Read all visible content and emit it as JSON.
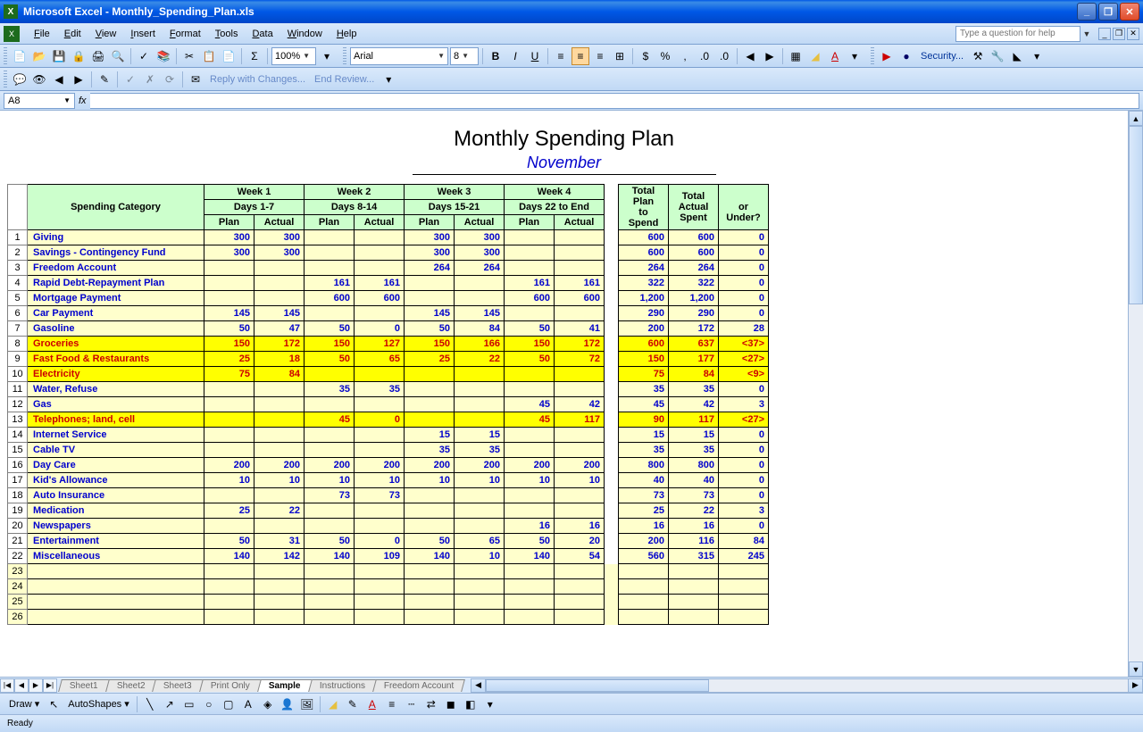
{
  "titlebar": {
    "app": "Microsoft Excel",
    "file": "Monthly_Spending_Plan.xls"
  },
  "menu": [
    "File",
    "Edit",
    "View",
    "Insert",
    "Format",
    "Tools",
    "Data",
    "Window",
    "Help"
  ],
  "helpPlaceholder": "Type a question for help",
  "toolbar1": {
    "zoom": "100%"
  },
  "toolbar2": {
    "font": "Arial",
    "size": "8"
  },
  "toolbar3": {
    "reply": "Reply with Changes...",
    "end": "End Review..."
  },
  "security": "Security...",
  "namebox": "A8",
  "doc": {
    "title": "Monthly Spending Plan",
    "month": "November"
  },
  "headers": {
    "category": "Spending Category",
    "weeks": [
      {
        "top": "Week 1",
        "sub": "Days 1-7"
      },
      {
        "top": "Week 2",
        "sub": "Days 8-14"
      },
      {
        "top": "Week 3",
        "sub": "Days 15-21"
      },
      {
        "top": "Week 4",
        "sub": "Days 22 to End"
      }
    ],
    "plan": "Plan",
    "actual": "Actual",
    "totals": [
      "Total Plan to Spend",
      "Total Actual Spent",
      "<Over> or Under?"
    ]
  },
  "rows": [
    {
      "n": 1,
      "cat": "Giving",
      "w": [
        [
          "300",
          "300"
        ],
        [
          "",
          ""
        ],
        [
          "300",
          "300"
        ],
        [
          "",
          ""
        ]
      ],
      "t": [
        "600",
        "600",
        "0"
      ],
      "over": false
    },
    {
      "n": 2,
      "cat": "Savings - Contingency Fund",
      "w": [
        [
          "300",
          "300"
        ],
        [
          "",
          ""
        ],
        [
          "300",
          "300"
        ],
        [
          "",
          ""
        ]
      ],
      "t": [
        "600",
        "600",
        "0"
      ],
      "over": false
    },
    {
      "n": 3,
      "cat": "Freedom Account",
      "w": [
        [
          "",
          ""
        ],
        [
          "",
          ""
        ],
        [
          "264",
          "264"
        ],
        [
          "",
          ""
        ]
      ],
      "t": [
        "264",
        "264",
        "0"
      ],
      "over": false
    },
    {
      "n": 4,
      "cat": "Rapid Debt-Repayment Plan",
      "w": [
        [
          "",
          ""
        ],
        [
          "161",
          "161"
        ],
        [
          "",
          ""
        ],
        [
          "161",
          "161"
        ]
      ],
      "t": [
        "322",
        "322",
        "0"
      ],
      "over": false
    },
    {
      "n": 5,
      "cat": "Mortgage Payment",
      "w": [
        [
          "",
          ""
        ],
        [
          "600",
          "600"
        ],
        [
          "",
          ""
        ],
        [
          "600",
          "600"
        ]
      ],
      "t": [
        "1,200",
        "1,200",
        "0"
      ],
      "over": false
    },
    {
      "n": 6,
      "cat": "Car Payment",
      "w": [
        [
          "145",
          "145"
        ],
        [
          "",
          ""
        ],
        [
          "145",
          "145"
        ],
        [
          "",
          ""
        ]
      ],
      "t": [
        "290",
        "290",
        "0"
      ],
      "over": false
    },
    {
      "n": 7,
      "cat": "Gasoline",
      "w": [
        [
          "50",
          "47"
        ],
        [
          "50",
          "0"
        ],
        [
          "50",
          "84"
        ],
        [
          "50",
          "41"
        ]
      ],
      "t": [
        "200",
        "172",
        "28"
      ],
      "over": false
    },
    {
      "n": 8,
      "cat": "Groceries",
      "w": [
        [
          "150",
          "172"
        ],
        [
          "150",
          "127"
        ],
        [
          "150",
          "166"
        ],
        [
          "150",
          "172"
        ]
      ],
      "t": [
        "600",
        "637",
        "<37>"
      ],
      "over": true
    },
    {
      "n": 9,
      "cat": "Fast Food & Restaurants",
      "w": [
        [
          "25",
          "18"
        ],
        [
          "50",
          "65"
        ],
        [
          "25",
          "22"
        ],
        [
          "50",
          "72"
        ]
      ],
      "t": [
        "150",
        "177",
        "<27>"
      ],
      "over": true
    },
    {
      "n": 10,
      "cat": "Electricity",
      "w": [
        [
          "75",
          "84"
        ],
        [
          "",
          ""
        ],
        [
          "",
          ""
        ],
        [
          "",
          ""
        ]
      ],
      "t": [
        "75",
        "84",
        "<9>"
      ],
      "over": true
    },
    {
      "n": 11,
      "cat": "Water, Refuse",
      "w": [
        [
          "",
          ""
        ],
        [
          "35",
          "35"
        ],
        [
          "",
          ""
        ],
        [
          "",
          ""
        ]
      ],
      "t": [
        "35",
        "35",
        "0"
      ],
      "over": false
    },
    {
      "n": 12,
      "cat": "Gas",
      "w": [
        [
          "",
          ""
        ],
        [
          "",
          ""
        ],
        [
          "",
          ""
        ],
        [
          "45",
          "42"
        ]
      ],
      "t": [
        "45",
        "42",
        "3"
      ],
      "over": false
    },
    {
      "n": 13,
      "cat": "Telephones; land, cell",
      "w": [
        [
          "",
          ""
        ],
        [
          "45",
          "0"
        ],
        [
          "",
          ""
        ],
        [
          "45",
          "117"
        ]
      ],
      "t": [
        "90",
        "117",
        "<27>"
      ],
      "over": true
    },
    {
      "n": 14,
      "cat": "Internet Service",
      "w": [
        [
          "",
          ""
        ],
        [
          "",
          ""
        ],
        [
          "15",
          "15"
        ],
        [
          "",
          ""
        ]
      ],
      "t": [
        "15",
        "15",
        "0"
      ],
      "over": false
    },
    {
      "n": 15,
      "cat": "Cable TV",
      "w": [
        [
          "",
          ""
        ],
        [
          "",
          ""
        ],
        [
          "35",
          "35"
        ],
        [
          "",
          ""
        ]
      ],
      "t": [
        "35",
        "35",
        "0"
      ],
      "over": false
    },
    {
      "n": 16,
      "cat": "Day Care",
      "w": [
        [
          "200",
          "200"
        ],
        [
          "200",
          "200"
        ],
        [
          "200",
          "200"
        ],
        [
          "200",
          "200"
        ]
      ],
      "t": [
        "800",
        "800",
        "0"
      ],
      "over": false
    },
    {
      "n": 17,
      "cat": "Kid's Allowance",
      "w": [
        [
          "10",
          "10"
        ],
        [
          "10",
          "10"
        ],
        [
          "10",
          "10"
        ],
        [
          "10",
          "10"
        ]
      ],
      "t": [
        "40",
        "40",
        "0"
      ],
      "over": false
    },
    {
      "n": 18,
      "cat": "Auto Insurance",
      "w": [
        [
          "",
          ""
        ],
        [
          "73",
          "73"
        ],
        [
          "",
          ""
        ],
        [
          "",
          ""
        ]
      ],
      "t": [
        "73",
        "73",
        "0"
      ],
      "over": false
    },
    {
      "n": 19,
      "cat": "Medication",
      "w": [
        [
          "25",
          "22"
        ],
        [
          "",
          ""
        ],
        [
          "",
          ""
        ],
        [
          "",
          ""
        ]
      ],
      "t": [
        "25",
        "22",
        "3"
      ],
      "over": false
    },
    {
      "n": 20,
      "cat": "Newspapers",
      "w": [
        [
          "",
          ""
        ],
        [
          "",
          ""
        ],
        [
          "",
          ""
        ],
        [
          "16",
          "16"
        ]
      ],
      "t": [
        "16",
        "16",
        "0"
      ],
      "over": false
    },
    {
      "n": 21,
      "cat": "Entertainment",
      "w": [
        [
          "50",
          "31"
        ],
        [
          "50",
          "0"
        ],
        [
          "50",
          "65"
        ],
        [
          "50",
          "20"
        ]
      ],
      "t": [
        "200",
        "116",
        "84"
      ],
      "over": false
    },
    {
      "n": 22,
      "cat": "Miscellaneous",
      "w": [
        [
          "140",
          "142"
        ],
        [
          "140",
          "109"
        ],
        [
          "140",
          "10"
        ],
        [
          "140",
          "54"
        ]
      ],
      "t": [
        "560",
        "315",
        "245"
      ],
      "over": false
    }
  ],
  "emptyRows": [
    23,
    24,
    25,
    26
  ],
  "tabs": [
    "Sheet1",
    "Sheet2",
    "Sheet3",
    "Print Only",
    "Sample",
    "Instructions",
    "Freedom Account"
  ],
  "activeTab": 4,
  "drawbar": {
    "draw": "Draw",
    "autoshapes": "AutoShapes"
  },
  "status": "Ready"
}
